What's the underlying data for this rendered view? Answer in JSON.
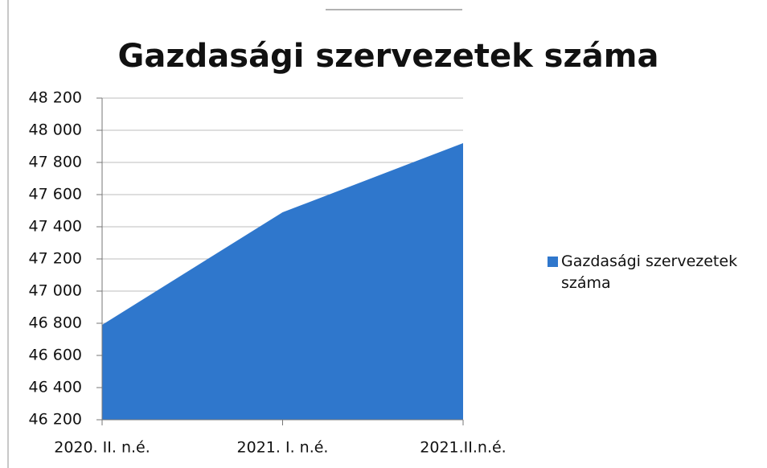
{
  "chart_data": {
    "type": "area",
    "title": "Gazdasági szervezetek száma",
    "categories": [
      "2020. II. n.é.",
      "2021. I. n.é.",
      "2021.II.n.é."
    ],
    "series": [
      {
        "name": "Gazdasági szervezetek száma",
        "color": "#2f77cc",
        "values": [
          46790,
          47490,
          47920
        ]
      }
    ],
    "ylim": [
      46200,
      48200
    ],
    "yticks": [
      {
        "value": 46200,
        "label": "46 200"
      },
      {
        "value": 46400,
        "label": "46 400"
      },
      {
        "value": 46600,
        "label": "46 600"
      },
      {
        "value": 46800,
        "label": "46 800"
      },
      {
        "value": 47000,
        "label": "47 000"
      },
      {
        "value": 47200,
        "label": "47 200"
      },
      {
        "value": 47400,
        "label": "47 400"
      },
      {
        "value": 47600,
        "label": "47 600"
      },
      {
        "value": 47800,
        "label": "47 800"
      },
      {
        "value": 48000,
        "label": "48 000"
      },
      {
        "value": 48200,
        "label": "48 200"
      }
    ],
    "grid": true,
    "legend": "right"
  }
}
